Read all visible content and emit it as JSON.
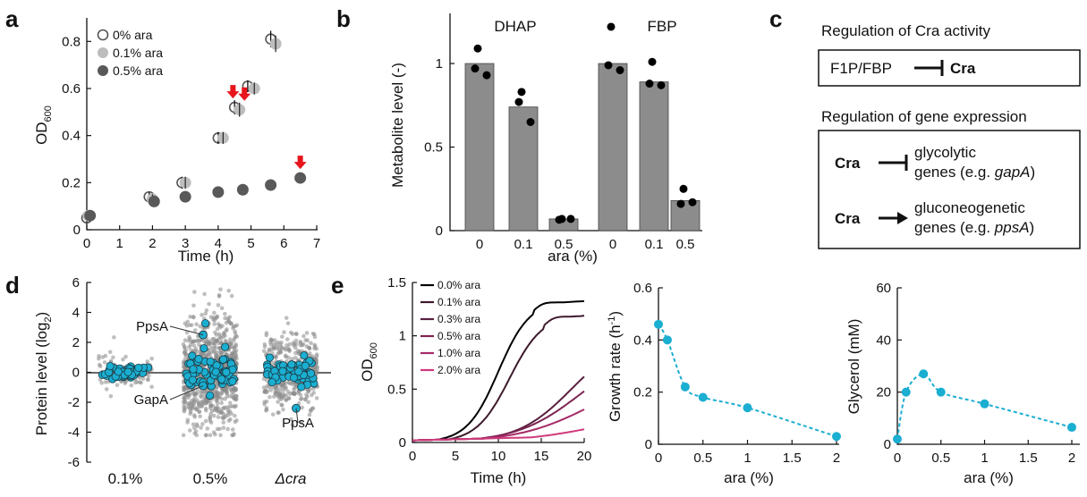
{
  "panel_labels": [
    "a",
    "b",
    "c",
    "d",
    "e"
  ],
  "chart_data": [
    {
      "id": "a",
      "type": "scatter",
      "xlabel": "Time (h)",
      "ylabel": "OD",
      "ylabel_sub": "600",
      "xlim": [
        0,
        7
      ],
      "ylim": [
        0,
        0.9
      ],
      "xticks": [
        "0",
        "1",
        "2",
        "3",
        "4",
        "5",
        "6",
        "7"
      ],
      "yticks": [
        "0",
        "0.2",
        "0.4",
        "0.6",
        "0.8"
      ],
      "legend": [
        "0% ara",
        "0.1% ara",
        "0.5% ara"
      ],
      "legend_position": "top-left",
      "series": [
        {
          "name": "0% ara",
          "x": [
            0,
            1.9,
            2.9,
            4.0,
            4.5,
            4.9,
            5.6
          ],
          "y": [
            0.05,
            0.14,
            0.2,
            0.39,
            0.52,
            0.61,
            0.81
          ],
          "err": [
            0.005,
            0.005,
            0.01,
            0.01,
            0.015,
            0.01,
            0.02
          ]
        },
        {
          "name": "0.1% ara",
          "x": [
            0.05,
            2.0,
            3.0,
            4.15,
            4.65,
            5.1,
            5.75
          ],
          "y": [
            0.06,
            0.13,
            0.2,
            0.39,
            0.51,
            0.6,
            0.79
          ],
          "err": [
            0.005,
            0.005,
            0.01,
            0.01,
            0.015,
            0.01,
            0.02
          ]
        },
        {
          "name": "0.5% ara",
          "x": [
            0.1,
            2.05,
            3.0,
            4.0,
            4.75,
            5.6,
            6.5
          ],
          "y": [
            0.06,
            0.12,
            0.14,
            0.16,
            0.17,
            0.19,
            0.22
          ]
        }
      ],
      "arrows": [
        {
          "x": 4.45,
          "y": 0.52
        },
        {
          "x": 4.8,
          "y": 0.51
        },
        {
          "x": 6.5,
          "y": 0.22
        }
      ],
      "colors": {
        "s0": "#ffffff",
        "s1": "#bdbdbd",
        "s2": "#595959",
        "arrow": "#e8141b"
      }
    },
    {
      "id": "b",
      "type": "bar",
      "ylabel": "Metabolite level (-)",
      "xlabel": "ara (%)",
      "ylim": [
        0,
        1.3
      ],
      "yticks": [
        "0",
        "0.5",
        "1"
      ],
      "groups": [
        {
          "name": "DHAP",
          "categories": [
            "0",
            "0.1",
            "0.5"
          ],
          "values": [
            1.0,
            0.74,
            0.07
          ],
          "points": [
            [
              1.09,
              0.97,
              0.93
            ],
            [
              0.83,
              0.77,
              0.65
            ],
            [
              0.07,
              0.065,
              0.07
            ]
          ]
        },
        {
          "name": "FBP",
          "categories": [
            "0",
            "0.1",
            "0.5"
          ],
          "values": [
            1.0,
            0.89,
            0.18
          ],
          "points": [
            [
              1.22,
              0.99,
              0.96
            ],
            [
              1.01,
              0.88,
              0.87
            ],
            [
              0.25,
              0.16,
              0.17
            ]
          ]
        }
      ],
      "colors": {
        "bar": "#8c8c8c"
      }
    },
    {
      "id": "d",
      "type": "scatter",
      "ylabel": "Protein level (log",
      "ylabel_sub": "2",
      "ylabel_end": ")",
      "ylim": [
        -6,
        6
      ],
      "yticks": [
        "-6",
        "-4",
        "-2",
        "0",
        "2",
        "4",
        "6"
      ],
      "categories": [
        "0.1%",
        "0.5%",
        "Δcra"
      ],
      "category_spread": [
        0.6,
        1.8,
        1.2
      ],
      "category_n_gray": [
        90,
        900,
        420
      ],
      "category_n_blue": [
        45,
        70,
        60
      ],
      "annotations": [
        {
          "text": "PpsA",
          "category": 1,
          "value": 2.5
        },
        {
          "text": "GapA",
          "category": 1,
          "value": -0.9
        },
        {
          "text": "PpsA",
          "category": 2,
          "value": -2.4
        }
      ],
      "colors": {
        "gray": "#8a8a8a",
        "blue": "#1aaed1"
      }
    },
    {
      "id": "e1",
      "type": "line",
      "xlabel": "Time (h)",
      "ylabel": "OD",
      "ylabel_sub": "600",
      "xlim": [
        0,
        20
      ],
      "ylim": [
        0,
        1.5
      ],
      "xticks": [
        "0",
        "5",
        "10",
        "15",
        "20"
      ],
      "yticks": [
        "0",
        "0.5",
        "1",
        "1.5"
      ],
      "legend_position": "top-left",
      "series": [
        {
          "name": "0.0% ara",
          "color": "#000000",
          "plateau": 1.33,
          "peak": 1.37,
          "mid": 10.0,
          "k": 0.55
        },
        {
          "name": "0.1% ara",
          "color": "#3d1a2c",
          "plateau": 1.2,
          "peak": 1.24,
          "mid": 11.3,
          "k": 0.52
        },
        {
          "name": "0.3% ara",
          "color": "#5a1f3e",
          "plateau": 1.0,
          "peak": 0,
          "mid": 18.5,
          "k": 0.32
        },
        {
          "name": "0.5% ara",
          "color": "#7d2452",
          "plateau": 0.9,
          "peak": 0,
          "mid": 19.5,
          "k": 0.27
        },
        {
          "name": "1.0% ara",
          "color": "#a62a66",
          "plateau": 0.7,
          "peak": 0,
          "mid": 21.0,
          "k": 0.23
        },
        {
          "name": "2.0% ara",
          "color": "#cf3a7c",
          "plateau": 0.35,
          "peak": 0,
          "mid": 23.0,
          "k": 0.2
        }
      ]
    },
    {
      "id": "e2",
      "type": "line",
      "xlabel": "ara (%)",
      "ylabel": "Growth rate (h",
      "ylabel_sup": "-1",
      "ylabel_end": ")",
      "xlim": [
        0,
        2
      ],
      "ylim": [
        0,
        0.6
      ],
      "xticks": [
        "0",
        "0.5",
        "1",
        "1.5",
        "2"
      ],
      "yticks": [
        "0",
        "0.2",
        "0.4",
        "0.6"
      ],
      "x": [
        0,
        0.1,
        0.3,
        0.5,
        1.0,
        2.0
      ],
      "y": [
        0.46,
        0.4,
        0.22,
        0.18,
        0.14,
        0.03
      ],
      "colors": {
        "line": "#1aaed1"
      }
    },
    {
      "id": "e3",
      "type": "line",
      "xlabel": "ara (%)",
      "ylabel": "Glycerol (mM)",
      "xlim": [
        0,
        2
      ],
      "ylim": [
        0,
        60
      ],
      "xticks": [
        "0",
        "0.5",
        "1",
        "1.5",
        "2"
      ],
      "yticks": [
        "0",
        "20",
        "40",
        "60"
      ],
      "x": [
        0,
        0.1,
        0.3,
        0.5,
        1.0,
        2.0
      ],
      "y": [
        2,
        20,
        27,
        20,
        15.5,
        6.5
      ],
      "colors": {
        "line": "#1aaed1"
      }
    }
  ],
  "panel_c": {
    "title1": "Regulation of Cra activity",
    "box1_left": "F1P/FBP",
    "box1_right": "Cra",
    "title2": "Regulation of gene expression",
    "row1_left": "Cra",
    "row1_line1": "glycolytic",
    "row1_line2": "genes (e.g. ",
    "row1_gene": "gapA",
    "row1_end": ")",
    "row2_left": "Cra",
    "row2_line1": "gluconeogenetic",
    "row2_line2": "genes (e.g. ",
    "row2_gene": "ppsA",
    "row2_end": ")"
  }
}
